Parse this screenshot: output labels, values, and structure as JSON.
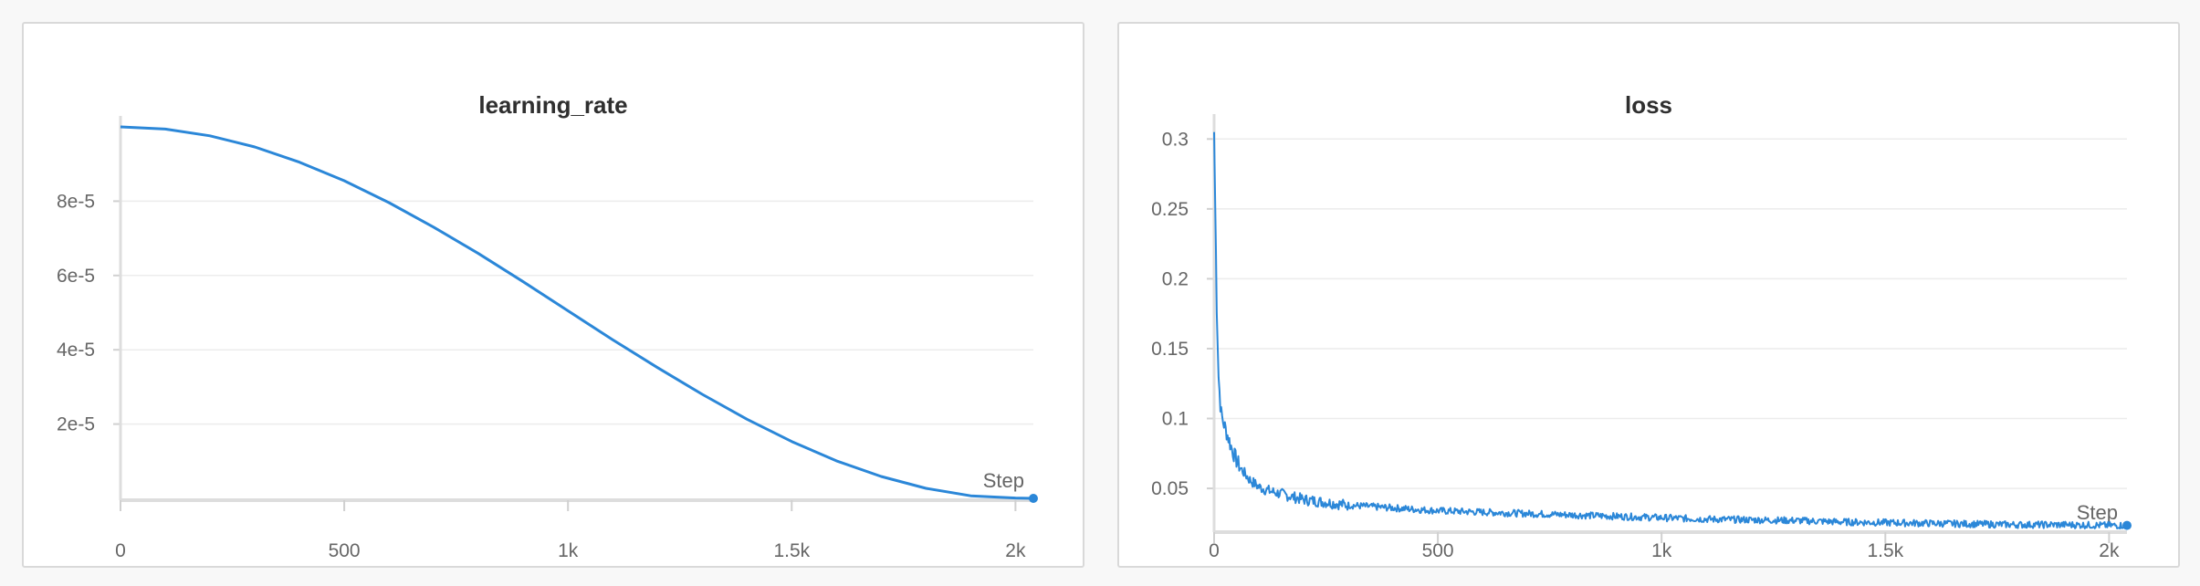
{
  "chart_data": [
    {
      "type": "line",
      "title": "learning_rate",
      "xlabel": "Step",
      "ylabel": "",
      "xlim": [
        0,
        2040
      ],
      "ylim": [
        0,
        0.0001
      ],
      "x_ticks": [
        0,
        500,
        1000,
        1500,
        2000
      ],
      "x_tick_labels": [
        "0",
        "500",
        "1k",
        "1.5k",
        "2k"
      ],
      "y_ticks": [
        2e-05,
        4e-05,
        6e-05,
        8e-05
      ],
      "y_tick_labels": [
        "2e-5",
        "4e-5",
        "6e-5",
        "8e-5"
      ],
      "grid": true,
      "color": "#2b87d8",
      "series": [
        {
          "x": [
            0,
            100,
            200,
            300,
            400,
            500,
            600,
            700,
            800,
            900,
            1000,
            1100,
            1200,
            1300,
            1400,
            1500,
            1600,
            1700,
            1800,
            1900,
            2000,
            2040
          ],
          "values": [
            0.0001,
            9.94e-05,
            9.76e-05,
            9.46e-05,
            9.05e-05,
            8.55e-05,
            7.96e-05,
            7.3e-05,
            6.59e-05,
            5.83e-05,
            5.05e-05,
            4.27e-05,
            3.52e-05,
            2.8e-05,
            2.13e-05,
            1.53e-05,
            1.01e-05,
            5.9e-06,
            2.7e-06,
            7e-07,
            1e-07,
            0
          ]
        }
      ]
    },
    {
      "type": "line",
      "title": "loss",
      "xlabel": "Step",
      "ylabel": "",
      "xlim": [
        0,
        2040
      ],
      "ylim": [
        0.02,
        0.31
      ],
      "x_ticks": [
        0,
        500,
        1000,
        1500,
        2000
      ],
      "x_tick_labels": [
        "0",
        "500",
        "1k",
        "1.5k",
        "2k"
      ],
      "y_ticks": [
        0.05,
        0.1,
        0.15,
        0.2,
        0.25,
        0.3
      ],
      "y_tick_labels": [
        "0.05",
        "0.1",
        "0.15",
        "0.2",
        "0.25",
        "0.3"
      ],
      "grid": true,
      "color": "#2b87d8",
      "series": [
        {
          "x": [
            0,
            3,
            6,
            10,
            15,
            20,
            30,
            40,
            50,
            60,
            70,
            80,
            100,
            125,
            150,
            200,
            250,
            300,
            400,
            500,
            600,
            700,
            800,
            900,
            1000,
            1100,
            1200,
            1300,
            1400,
            1500,
            1600,
            1700,
            1800,
            1900,
            2000,
            2040
          ],
          "values": [
            0.305,
            0.24,
            0.18,
            0.13,
            0.105,
            0.098,
            0.088,
            0.078,
            0.07,
            0.064,
            0.06,
            0.056,
            0.051,
            0.048,
            0.046,
            0.042,
            0.04,
            0.038,
            0.036,
            0.034,
            0.033,
            0.032,
            0.031,
            0.03,
            0.029,
            0.028,
            0.0275,
            0.027,
            0.026,
            0.0255,
            0.025,
            0.0245,
            0.024,
            0.024,
            0.0235,
            0.0235
          ]
        }
      ]
    }
  ]
}
